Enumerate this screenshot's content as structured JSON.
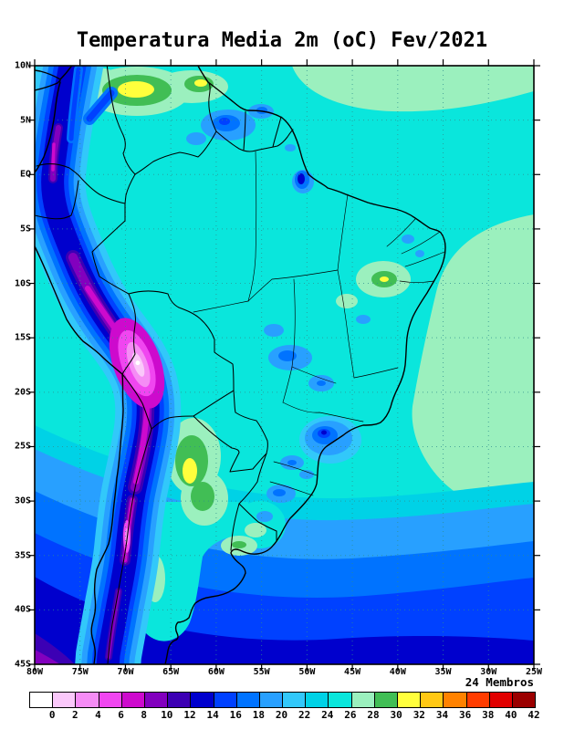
{
  "figure": {
    "title": "Temperatura Media 2m (oC) Fev/2021",
    "members_label": "24 Membros"
  },
  "chart_data": {
    "type": "heatmap",
    "title": "Temperatura Media 2m (oC) Fev/2021",
    "variable": "2-meter mean temperature (oC)",
    "period": "Fev/2021",
    "ensemble_members": 24,
    "region": "South America",
    "axes": {
      "lat_ticks": [
        "10N",
        "5N",
        "EQ",
        "5S",
        "10S",
        "15S",
        "20S",
        "25S",
        "30S",
        "35S",
        "40S",
        "45S"
      ],
      "lon_ticks": [
        "80W",
        "75W",
        "70W",
        "65W",
        "60W",
        "55W",
        "50W",
        "45W",
        "40W",
        "35W",
        "30W",
        "25W"
      ],
      "lat_range": [
        "10N",
        "45S"
      ],
      "lon_range": [
        "80W",
        "25W"
      ],
      "grid": "dotted"
    },
    "colorbar": {
      "units": "oC",
      "position": "bottom",
      "levels": [
        0,
        2,
        4,
        6,
        8,
        10,
        12,
        14,
        16,
        18,
        20,
        22,
        24,
        26,
        28,
        30,
        32,
        34,
        36,
        38,
        40,
        42
      ],
      "colors": [
        "#ffffff",
        "#fac8fa",
        "#f58cf5",
        "#f046f0",
        "#cd0acd",
        "#8200be",
        "#3c00b4",
        "#0000cd",
        "#0041ff",
        "#0073ff",
        "#28a0ff",
        "#32c8fa",
        "#00d2e6",
        "#0ae6dc",
        "#9bf0be",
        "#41be55",
        "#ffff3c",
        "#ffc814",
        "#ff8200",
        "#ff3c00",
        "#e10000",
        "#9b0000"
      ]
    },
    "features": [
      {
        "region": "Andes cordillera / Altiplano (Peru-Bolivia)",
        "approx_temp_oC": "0-10"
      },
      {
        "region": "Central Chile Andes (30S-33S)",
        "approx_temp_oC": "4-10"
      },
      {
        "region": "Amazon basin and most lowlands",
        "approx_temp_oC": "24-26"
      },
      {
        "region": "Venezuela / Colombia llanos",
        "approx_temp_oC": "28-32"
      },
      {
        "region": "Guiana highlands patches",
        "approx_temp_oC": "16-20"
      },
      {
        "region": "Central Brazil highland patches",
        "approx_temp_oC": "18-22"
      },
      {
        "region": "Southeast Brazil highlands",
        "approx_temp_oC": "14-20"
      },
      {
        "region": "Chaco (Paraguay / N Argentina)",
        "approx_temp_oC": "28-32"
      },
      {
        "region": "Interior Northeast Brazil",
        "approx_temp_oC": "28-32"
      },
      {
        "region": "Tropical Atlantic east of Brazil",
        "approx_temp_oC": "26-28"
      },
      {
        "region": "Southern oceans toward 45S",
        "approx_temp_oC": "10-20"
      },
      {
        "region": "Southeast Pacific corner (45S 80W)",
        "approx_temp_oC": "8-12"
      }
    ]
  }
}
